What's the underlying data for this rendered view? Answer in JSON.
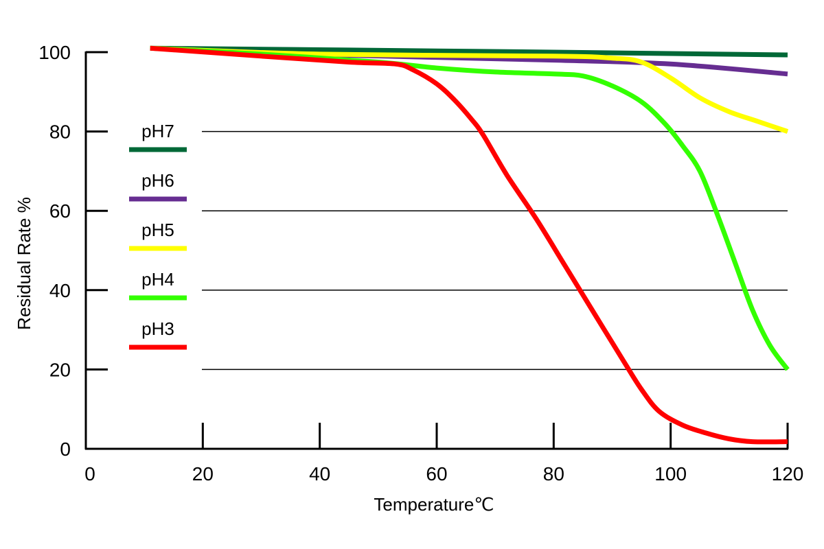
{
  "chart_data": {
    "type": "line",
    "xlabel": "Temperature℃",
    "ylabel": "Residual Rate %",
    "xlim": [
      0,
      120
    ],
    "ylim": [
      0,
      100
    ],
    "xticks": [
      0,
      20,
      40,
      60,
      80,
      100,
      120
    ],
    "yticks": [
      0,
      20,
      40,
      60,
      80,
      100
    ],
    "grid": "horizontal",
    "legend_position": "left",
    "series": [
      {
        "name": "pH7",
        "color": "#006837",
        "points": [
          [
            11,
            101
          ],
          [
            40,
            100.6
          ],
          [
            80,
            100
          ],
          [
            120,
            99.3
          ]
        ]
      },
      {
        "name": "pH6",
        "color": "#662d91",
        "points": [
          [
            11,
            101
          ],
          [
            40,
            99.4
          ],
          [
            80,
            98
          ],
          [
            100,
            97
          ],
          [
            120,
            94.5
          ]
        ]
      },
      {
        "name": "pH5",
        "color": "#ffff00",
        "points": [
          [
            11,
            101
          ],
          [
            40,
            99.5
          ],
          [
            80,
            99
          ],
          [
            90,
            98.5
          ],
          [
            95,
            97.5
          ],
          [
            100,
            93.5
          ],
          [
            105,
            88.5
          ],
          [
            110,
            85
          ],
          [
            115,
            82.5
          ],
          [
            120,
            80
          ]
        ]
      },
      {
        "name": "pH4",
        "color": "#33ff00",
        "points": [
          [
            11,
            101
          ],
          [
            30,
            99.5
          ],
          [
            50,
            97.5
          ],
          [
            60,
            96
          ],
          [
            70,
            95
          ],
          [
            80,
            94.5
          ],
          [
            85,
            94
          ],
          [
            90,
            91.5
          ],
          [
            95,
            87.5
          ],
          [
            99,
            82
          ],
          [
            102,
            76.5
          ],
          [
            105,
            70
          ],
          [
            108,
            59
          ],
          [
            111,
            47
          ],
          [
            114,
            35
          ],
          [
            117,
            26
          ],
          [
            120,
            20
          ]
        ]
      },
      {
        "name": "pH3",
        "color": "#ff0000",
        "points": [
          [
            11,
            101
          ],
          [
            30,
            99
          ],
          [
            45,
            97.5
          ],
          [
            53,
            97
          ],
          [
            56,
            95.5
          ],
          [
            60,
            92
          ],
          [
            63,
            88
          ],
          [
            66,
            83
          ],
          [
            68,
            79
          ],
          [
            72,
            69
          ],
          [
            77,
            58
          ],
          [
            82,
            46
          ],
          [
            87,
            34
          ],
          [
            92,
            22
          ],
          [
            95,
            15
          ],
          [
            98,
            9.5
          ],
          [
            102,
            6
          ],
          [
            106,
            4
          ],
          [
            110,
            2.5
          ],
          [
            114,
            1.8
          ],
          [
            120,
            1.8
          ]
        ]
      }
    ]
  }
}
